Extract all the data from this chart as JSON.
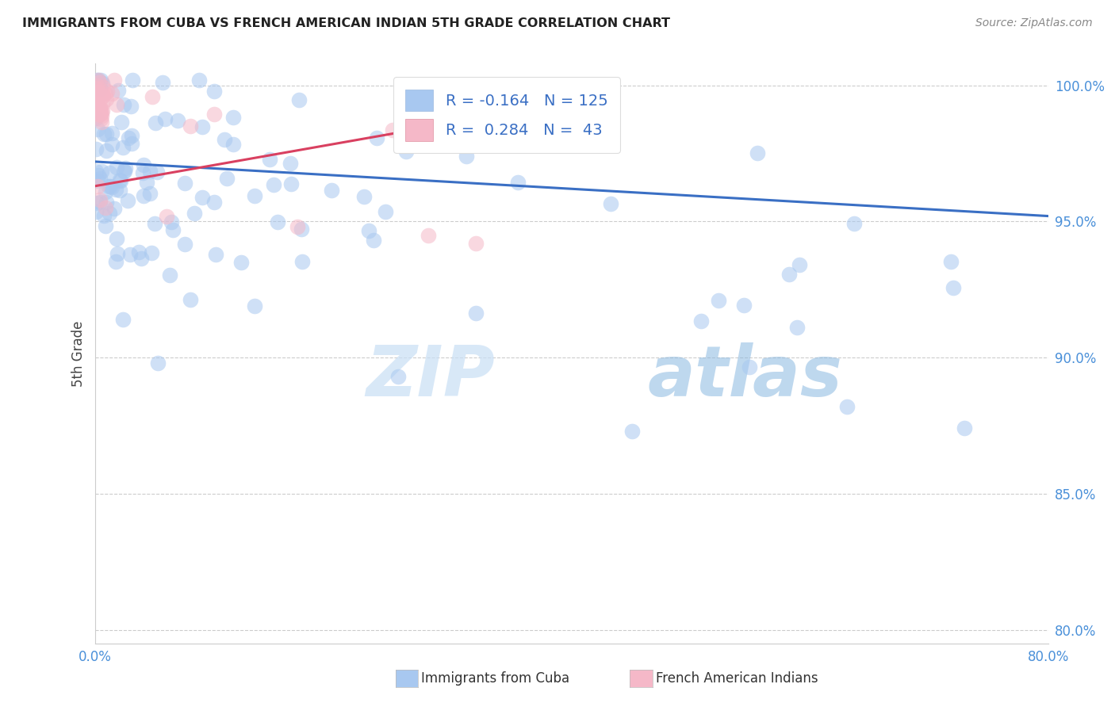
{
  "title": "IMMIGRANTS FROM CUBA VS FRENCH AMERICAN INDIAN 5TH GRADE CORRELATION CHART",
  "source": "Source: ZipAtlas.com",
  "ylabel": "5th Grade",
  "legend_label_blue": "Immigrants from Cuba",
  "legend_label_pink": "French American Indians",
  "R_blue": -0.164,
  "N_blue": 125,
  "R_pink": 0.284,
  "N_pink": 43,
  "xlim": [
    0.0,
    0.8
  ],
  "ylim": [
    0.795,
    1.008
  ],
  "yticks": [
    0.8,
    0.85,
    0.9,
    0.95,
    1.0
  ],
  "ytick_labels": [
    "80.0%",
    "85.0%",
    "90.0%",
    "95.0%",
    "100.0%"
  ],
  "xticks": [
    0.0,
    0.1,
    0.2,
    0.3,
    0.4,
    0.5,
    0.6,
    0.7,
    0.8
  ],
  "xtick_labels": [
    "0.0%",
    "",
    "",
    "",
    "",
    "",
    "",
    "",
    "80.0%"
  ],
  "color_blue": "#a8c8f0",
  "color_pink": "#f5b8c8",
  "line_color_blue": "#3a6fc4",
  "line_color_pink": "#d94060",
  "watermark_zip": "ZIP",
  "watermark_atlas": "atlas",
  "blue_trend_x": [
    0.0,
    0.8
  ],
  "blue_trend_y": [
    0.972,
    0.952
  ],
  "pink_trend_x": [
    0.0,
    0.35
  ],
  "pink_trend_y": [
    0.963,
    0.99
  ]
}
